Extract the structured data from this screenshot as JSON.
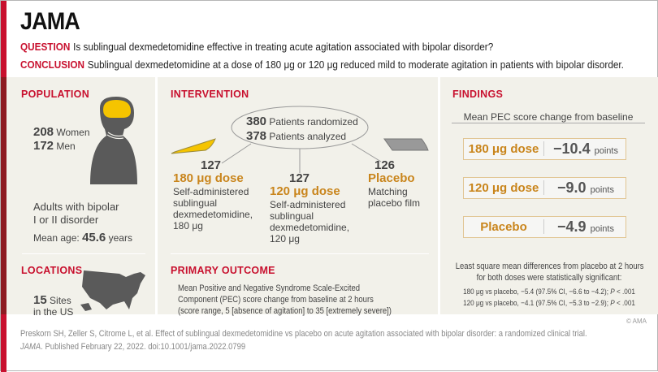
{
  "header": {
    "logo": "JAMA",
    "question_label": "QUESTION",
    "question": "Is sublingual dexmedetomidine effective in treating acute agitation associated with bipolar disorder?",
    "conclusion_label": "CONCLUSION",
    "conclusion": "Sublingual dexmedetomidine at a dose of 180 μg or 120 μg reduced mild to moderate agitation in patients with bipolar disorder."
  },
  "population": {
    "title": "POPULATION",
    "women_n": "208",
    "women_label": "Women",
    "men_n": "172",
    "men_label": "Men",
    "desc_line1": "Adults with bipolar",
    "desc_line2": "I or II disorder",
    "age_label": "Mean age:",
    "age_value": "45.6",
    "age_unit": "years"
  },
  "locations": {
    "title": "LOCATIONS",
    "sites_n": "15",
    "sites_label": "Sites",
    "sites_line2": "in the US"
  },
  "intervention": {
    "title": "INTERVENTION",
    "randomized_n": "380",
    "randomized_label": "Patients randomized",
    "analyzed_n": "378",
    "analyzed_label": "Patients analyzed",
    "arms": [
      {
        "n": "127",
        "name": "180 μg dose",
        "desc": [
          "Self-administered",
          "sublingual",
          "dexmedetomidine,",
          "180 μg"
        ]
      },
      {
        "n": "127",
        "name": "120 μg dose",
        "desc": [
          "Self-administered",
          "sublingual",
          "dexmedetomidine,",
          "120 μg"
        ]
      },
      {
        "n": "126",
        "name": "Placebo",
        "desc": [
          "Matching",
          "placebo film"
        ]
      }
    ]
  },
  "outcome": {
    "title": "PRIMARY OUTCOME",
    "lines": [
      "Mean Positive and Negative Syndrome Scale-Excited",
      "Component (PEC) score change from baseline at 2 hours",
      "(score range, 5 [absence of agitation] to 35 [extremely severe])"
    ]
  },
  "findings": {
    "title": "FINDINGS",
    "subtitle": "Mean PEC score change from baseline",
    "results": [
      {
        "label": "180 μg dose",
        "value": "−10.4",
        "unit": "points"
      },
      {
        "label": "120 μg dose",
        "value": "−9.0",
        "unit": "points"
      },
      {
        "label": "Placebo",
        "value": "−4.9",
        "unit": "points"
      }
    ],
    "note_line1": "Least square mean differences from placebo at 2 hours",
    "note_line2": "for both doses were statistically significant:",
    "stat1": "180 μg vs placebo, −5.4 (97.5% CI, −6.6 to −4.2);",
    "stat2": "120 μg vs placebo, −4.1 (97.5% CI, −5.3 to −2.9);",
    "p_label": "P",
    "p_value": "< .001",
    "copyright": "© AMA"
  },
  "footer": {
    "citation": "Preskorn SH,  Zeller S, Citrome L, et al. Effect of sublingual dexmedetomidine vs placebo on acute agitation associated with bipolar disorder: a randomized clinical trial.",
    "journal": "JAMA",
    "published": ". Published February 22, 2022. doi:10.1001/jama.2022.0799"
  },
  "colors": {
    "red": "#c8102e",
    "dark_red": "#8e1b22",
    "orange": "#c9851c",
    "panel": "#f2f1ea",
    "yellow": "#f5c400"
  }
}
